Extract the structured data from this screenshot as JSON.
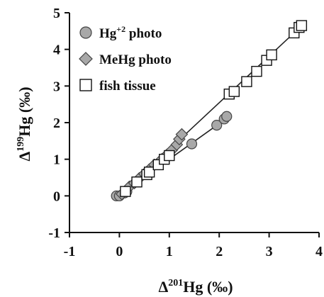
{
  "chart_data": {
    "type": "scatter",
    "title": "",
    "xlabel": {
      "prefix": "Δ",
      "sup": "201",
      "rest": "Hg (‰)"
    },
    "ylabel": {
      "prefix": "Δ",
      "sup": "199",
      "rest": "Hg (‰)"
    },
    "xlim": [
      -1,
      4
    ],
    "ylim": [
      -1,
      5
    ],
    "xticks": [
      -1,
      0,
      1,
      2,
      3,
      4
    ],
    "yticks": [
      -1,
      0,
      1,
      2,
      3,
      4,
      5
    ],
    "grid": false,
    "legend_position": "top-left",
    "series": [
      {
        "name": "Hg",
        "name_sup": "+2",
        "name_suffix": " photo",
        "marker": "circle",
        "color": "#a8a8a8",
        "points": [
          [
            -0.06,
            0.0
          ],
          [
            0.0,
            0.0
          ],
          [
            0.1,
            0.08
          ],
          [
            0.15,
            0.12
          ],
          [
            1.45,
            1.42
          ],
          [
            1.95,
            1.93
          ],
          [
            2.1,
            2.1
          ],
          [
            2.15,
            2.17
          ]
        ],
        "fit": [
          [
            0.0,
            0.03
          ],
          [
            2.15,
            2.12
          ]
        ]
      },
      {
        "name": "MeHg photo",
        "name_sup": "",
        "name_suffix": "",
        "marker": "diamond",
        "color": "#a8a8a8",
        "points": [
          [
            0.05,
            0.05
          ],
          [
            0.2,
            0.25
          ],
          [
            0.3,
            0.35
          ],
          [
            0.4,
            0.48
          ],
          [
            0.5,
            0.6
          ],
          [
            0.6,
            0.72
          ],
          [
            0.7,
            0.85
          ],
          [
            0.85,
            1.0
          ],
          [
            0.95,
            1.12
          ],
          [
            1.05,
            1.25
          ],
          [
            1.15,
            1.4
          ],
          [
            1.2,
            1.55
          ],
          [
            1.25,
            1.68
          ]
        ],
        "fit": [
          [
            0.0,
            0.0
          ],
          [
            1.3,
            1.66
          ]
        ]
      },
      {
        "name": "fish tissue",
        "name_sup": "",
        "name_suffix": "",
        "marker": "square",
        "color": "#ffffff",
        "points": [
          [
            0.12,
            0.12
          ],
          [
            0.35,
            0.38
          ],
          [
            0.55,
            0.58
          ],
          [
            0.6,
            0.65
          ],
          [
            0.78,
            0.85
          ],
          [
            0.9,
            1.0
          ],
          [
            1.0,
            1.1
          ],
          [
            2.2,
            2.78
          ],
          [
            2.3,
            2.85
          ],
          [
            2.55,
            3.12
          ],
          [
            2.75,
            3.4
          ],
          [
            2.95,
            3.7
          ],
          [
            3.05,
            3.85
          ],
          [
            3.5,
            4.45
          ],
          [
            3.6,
            4.6
          ],
          [
            3.65,
            4.65
          ]
        ],
        "fit": [
          [
            0.0,
            0.0
          ],
          [
            3.68,
            4.68
          ]
        ]
      }
    ]
  }
}
